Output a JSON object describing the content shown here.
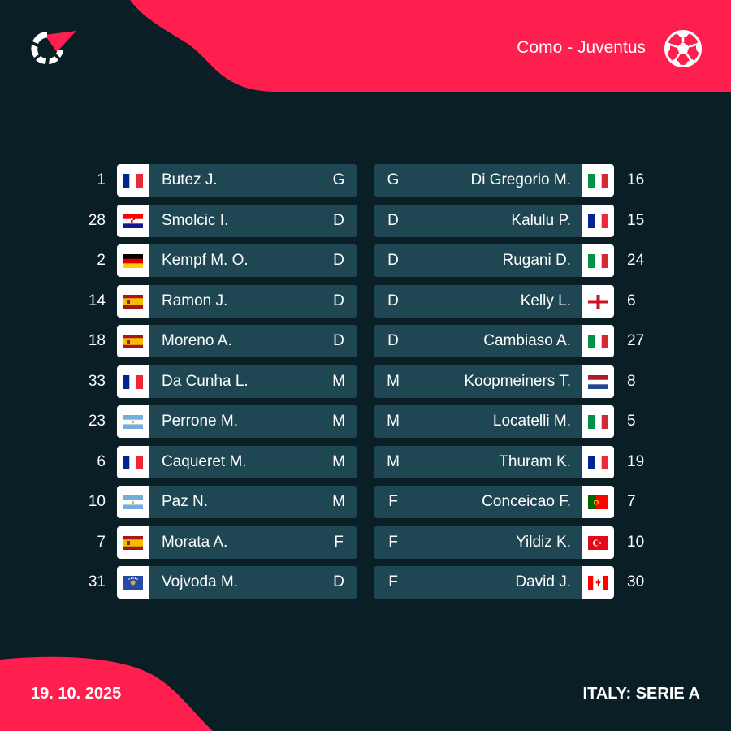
{
  "colors": {
    "background": "#0a1e25",
    "accent": "#ff1f4e",
    "card": "#1f4653",
    "text": "#ffffff"
  },
  "header": {
    "logo_icon": "flashscore-logo-icon",
    "match": "Como - Juventus",
    "sport_icon": "soccer-ball-icon"
  },
  "home": [
    {
      "number": "1",
      "flag": "france",
      "name": "Butez J.",
      "pos": "G"
    },
    {
      "number": "28",
      "flag": "croatia",
      "name": "Smolcic I.",
      "pos": "D"
    },
    {
      "number": "2",
      "flag": "germany",
      "name": "Kempf M. O.",
      "pos": "D"
    },
    {
      "number": "14",
      "flag": "spain",
      "name": "Ramon J.",
      "pos": "D"
    },
    {
      "number": "18",
      "flag": "spain",
      "name": "Moreno A.",
      "pos": "D"
    },
    {
      "number": "33",
      "flag": "france",
      "name": "Da Cunha L.",
      "pos": "M"
    },
    {
      "number": "23",
      "flag": "argentina",
      "name": "Perrone M.",
      "pos": "M"
    },
    {
      "number": "6",
      "flag": "france",
      "name": "Caqueret M.",
      "pos": "M"
    },
    {
      "number": "10",
      "flag": "argentina",
      "name": "Paz N.",
      "pos": "M"
    },
    {
      "number": "7",
      "flag": "spain",
      "name": "Morata A.",
      "pos": "F"
    },
    {
      "number": "31",
      "flag": "kosovo",
      "name": "Vojvoda M.",
      "pos": "D"
    }
  ],
  "away": [
    {
      "number": "16",
      "flag": "italy",
      "name": "Di Gregorio M.",
      "pos": "G"
    },
    {
      "number": "15",
      "flag": "france",
      "name": "Kalulu P.",
      "pos": "D"
    },
    {
      "number": "24",
      "flag": "italy",
      "name": "Rugani D.",
      "pos": "D"
    },
    {
      "number": "6",
      "flag": "england",
      "name": "Kelly L.",
      "pos": "D"
    },
    {
      "number": "27",
      "flag": "italy",
      "name": "Cambiaso A.",
      "pos": "D"
    },
    {
      "number": "8",
      "flag": "netherlands",
      "name": "Koopmeiners T.",
      "pos": "M"
    },
    {
      "number": "5",
      "flag": "italy",
      "name": "Locatelli M.",
      "pos": "M"
    },
    {
      "number": "19",
      "flag": "france",
      "name": "Thuram K.",
      "pos": "M"
    },
    {
      "number": "7",
      "flag": "portugal",
      "name": "Conceicao F.",
      "pos": "F"
    },
    {
      "number": "10",
      "flag": "turkey",
      "name": "Yildiz K.",
      "pos": "F"
    },
    {
      "number": "30",
      "flag": "canada",
      "name": "David J.",
      "pos": "F"
    }
  ],
  "footer": {
    "date": "19. 10. 2025",
    "competition": "ITALY: SERIE A"
  }
}
